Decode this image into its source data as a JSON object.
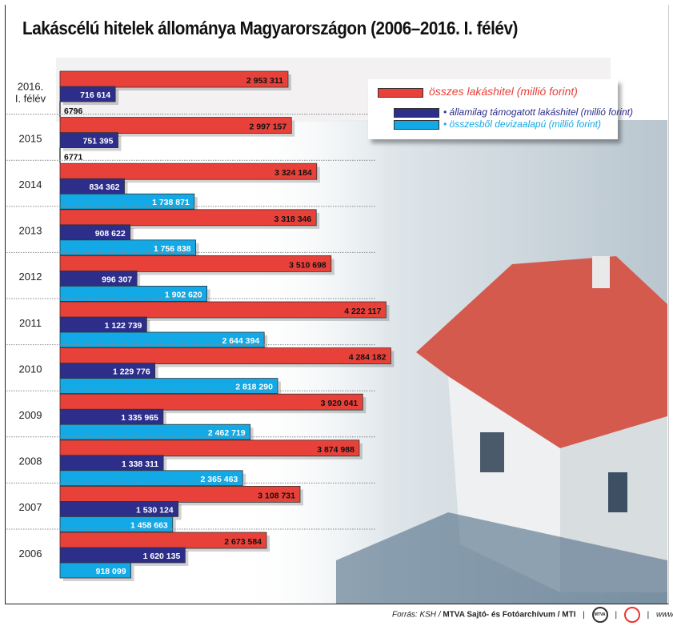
{
  "title": "Lakáscélú hitelek állománya Magyarországon (2006–2016. I. félév)",
  "chart_data": {
    "type": "bar",
    "orientation": "horizontal",
    "title": "Lakáscélú hitelek állománya Magyarországon (2006–2016. I. félév)",
    "categories": [
      [
        "2016.",
        "I. félév"
      ],
      [
        "2015"
      ],
      [
        "2014"
      ],
      [
        "2013"
      ],
      [
        "2012"
      ],
      [
        "2011"
      ],
      [
        "2010"
      ],
      [
        "2009"
      ],
      [
        "2008"
      ],
      [
        "2007"
      ],
      [
        "2006"
      ]
    ],
    "series": [
      {
        "name": "összes lakáshitel (millió forint)",
        "color": "#e8413a",
        "values": [
          2953311,
          2997157,
          3324184,
          3318346,
          3510698,
          4222117,
          4284182,
          3920041,
          3874988,
          3108731,
          2673584
        ],
        "labels": [
          "2 953 311",
          "2 997 157",
          "3 324 184",
          "3 318 346",
          "3 510 698",
          "4 222 117",
          "4 284 182",
          "3 920 041",
          "3 874 988",
          "3 108 731",
          "2 673 584"
        ]
      },
      {
        "name": "• államilag támogatott lakáshitel (millió forint)",
        "color": "#2c2e8a",
        "values": [
          716614,
          751395,
          834362,
          908622,
          996307,
          1122739,
          1229776,
          1335965,
          1338311,
          1530124,
          1620135
        ],
        "labels": [
          "716 614",
          "751 395",
          "834 362",
          "908 622",
          "996 307",
          "1 122 739",
          "1 229 776",
          "1 335 965",
          "1 338 311",
          "1 530 124",
          "1 620 135"
        ]
      },
      {
        "name": "• összesből devizaalapú (millió forint)",
        "color": "#12a9e6",
        "values": [
          6796,
          6771,
          1738871,
          1756838,
          1902620,
          2644394,
          2818290,
          2462719,
          2365463,
          1458663,
          918099
        ],
        "labels": [
          "6796",
          "6771",
          "1 738 871",
          "1 756 838",
          "1 902 620",
          "2 644 394",
          "2 818 290",
          "2 462 719",
          "2 365 463",
          "1 458 663",
          "918 099"
        ]
      }
    ],
    "legend": "top-right",
    "grid": false
  },
  "footer": {
    "source": "Forrás: KSH /",
    "agency": "MTVA Sajtó- és Fotóarchívum / MTI",
    "sep": "|",
    "logo1": "MTVA",
    "url": "www.mti.hu"
  }
}
